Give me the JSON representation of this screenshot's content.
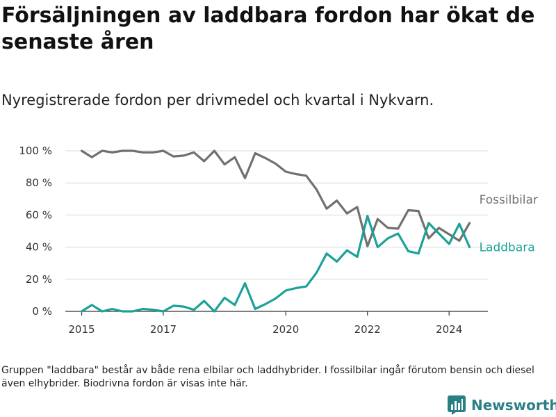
{
  "chart_data": {
    "type": "line",
    "title": "Försäljningen av laddbara fordon har ökat de senaste åren",
    "subtitle": "Nyregistrerade fordon per drivmedel och kvartal i Nykvarn.",
    "xlabel": "",
    "ylabel": "",
    "xlim": [
      2014.6,
      2024.95
    ],
    "ylim": [
      0,
      100
    ],
    "x_ticks": [
      2015,
      2017,
      2020,
      2022,
      2024
    ],
    "x_tick_labels": [
      "2015",
      "2017",
      "2020",
      "2022",
      "2024"
    ],
    "y_ticks": [
      0,
      20,
      40,
      60,
      80,
      100
    ],
    "y_tick_labels": [
      "0 %",
      "20 %",
      "40 %",
      "60 %",
      "80 %",
      "100 %"
    ],
    "grid": true,
    "legend": "direct labels at line ends (right)",
    "x": [
      2015.0,
      2015.25,
      2015.5,
      2015.75,
      2016.0,
      2016.25,
      2016.5,
      2016.75,
      2017.0,
      2017.25,
      2017.5,
      2017.75,
      2018.0,
      2018.25,
      2018.5,
      2018.75,
      2019.0,
      2019.25,
      2019.5,
      2019.75,
      2020.0,
      2020.25,
      2020.5,
      2020.75,
      2021.0,
      2021.25,
      2021.5,
      2021.75,
      2022.0,
      2022.25,
      2022.5,
      2022.75,
      2023.0,
      2023.25,
      2023.5,
      2023.75,
      2024.0,
      2024.25,
      2024.5
    ],
    "series": [
      {
        "name": "Fossilbilar",
        "color": "#707070",
        "values": [
          100,
          96,
          100,
          99,
          100,
          100,
          99,
          99,
          100,
          96.5,
          97,
          99,
          93.5,
          100,
          91.5,
          96,
          83,
          98.5,
          95.5,
          92,
          87,
          85.5,
          84.5,
          76,
          64,
          69,
          61,
          65,
          40.5,
          57.5,
          52,
          51.5,
          63,
          62.5,
          45.5,
          52,
          48,
          44,
          55
        ]
      },
      {
        "name": "Laddbara",
        "color": "#1aa297",
        "values": [
          0,
          4,
          0,
          1.5,
          0,
          0,
          1.5,
          1,
          0,
          3.5,
          3,
          1,
          6.5,
          0,
          8.5,
          4,
          17.5,
          1.5,
          4.5,
          8,
          13,
          14.5,
          15.5,
          24,
          36,
          31,
          38,
          34,
          59.5,
          40,
          45.5,
          48.5,
          37.5,
          36,
          55,
          48.5,
          42,
          54.5,
          40
        ]
      }
    ]
  },
  "note": "Gruppen \"laddbara\" består av både rena elbilar och laddhybrider. I fossilbilar ingår förutom bensin och diesel även elhybrider. Biodrivna fordon är visas inte här.",
  "brand": {
    "name": "Newsworthy",
    "logo_icon": "bar-chart-logo-icon",
    "color": "#2a7f86"
  }
}
